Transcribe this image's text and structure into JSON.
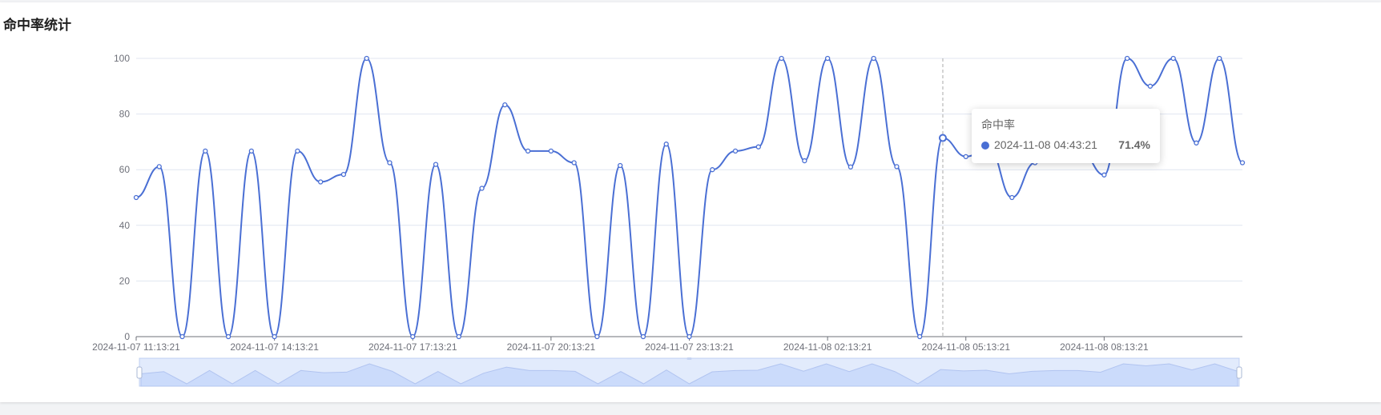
{
  "panel": {
    "title": "命中率统计"
  },
  "tooltip": {
    "series_name": "命中率",
    "x_label": "2024-11-08 04:43:21",
    "value_label": "71.4%"
  },
  "colors": {
    "line": "#4a6fd4",
    "grid": "#e0e6f1",
    "axis": "#6e7079",
    "slider_fill": "#d7e3fb",
    "slider_border": "#c6d4f2",
    "pointer": "#aaaaaa"
  },
  "chart_data": {
    "type": "line",
    "smooth": true,
    "series": [
      {
        "values": [
          50.0,
          61.1,
          0,
          66.7,
          0,
          66.7,
          0,
          66.7,
          55.6,
          58.3,
          100,
          62.5,
          0,
          61.9,
          0,
          53.3,
          83.3,
          66.7,
          66.7,
          62.5,
          0,
          61.5,
          0,
          69.2,
          0,
          60.0,
          66.7,
          68.2,
          100,
          63.2,
          100,
          61.0,
          100,
          61.1,
          0,
          71.4,
          64.7,
          68.0,
          50.0,
          62.5,
          66.7,
          66.7,
          58.1,
          100,
          90.0,
          100,
          69.6,
          100,
          62.5
        ]
      }
    ],
    "x": [
      "2024-11-07 11:13:21",
      "2024-11-07 11:43:21",
      "2024-11-07 12:13:21",
      "2024-11-07 12:43:21",
      "2024-11-07 13:13:21",
      "2024-11-07 13:43:21",
      "2024-11-07 14:13:21",
      "2024-11-07 14:43:21",
      "2024-11-07 15:13:21",
      "2024-11-07 15:43:21",
      "2024-11-07 16:13:21",
      "2024-11-07 16:43:21",
      "2024-11-07 17:13:21",
      "2024-11-07 17:43:21",
      "2024-11-07 18:13:21",
      "2024-11-07 18:43:21",
      "2024-11-07 19:13:21",
      "2024-11-07 19:43:21",
      "2024-11-07 20:13:21",
      "2024-11-07 20:43:21",
      "2024-11-07 21:13:21",
      "2024-11-07 21:43:21",
      "2024-11-07 22:13:21",
      "2024-11-07 22:43:21",
      "2024-11-07 23:13:21",
      "2024-11-07 23:43:21",
      "2024-11-08 00:13:21",
      "2024-11-08 00:43:21",
      "2024-11-08 01:13:21",
      "2024-11-08 01:43:21",
      "2024-11-08 02:13:21",
      "2024-11-08 02:43:21",
      "2024-11-08 03:13:21",
      "2024-11-08 03:43:21",
      "2024-11-08 04:13:21",
      "2024-11-08 04:43:21",
      "2024-11-08 05:13:21",
      "2024-11-08 05:43:21",
      "2024-11-08 06:13:21",
      "2024-11-08 06:43:21",
      "2024-11-08 07:13:21",
      "2024-11-08 07:43:21",
      "2024-11-08 08:13:21",
      "2024-11-08 08:43:21",
      "2024-11-08 09:13:21",
      "2024-11-08 09:43:21",
      "2024-11-08 10:13:21",
      "2024-11-08 10:43:21",
      "2024-11-08 11:13:21"
    ],
    "x_tick_labels": [
      "2024-11-07 11:13:21",
      "2024-11-07 14:13:21",
      "2024-11-07 17:13:21",
      "2024-11-07 20:13:21",
      "2024-11-07 23:13:21",
      "2024-11-08 02:13:21",
      "2024-11-08 05:13:21",
      "2024-11-08 08:13:21"
    ],
    "y_ticks": [
      0,
      20,
      40,
      60,
      80,
      100
    ],
    "ylim": [
      0,
      100
    ],
    "grid": true,
    "title": "",
    "xlabel": "",
    "ylabel": "",
    "highlighted_point": "2024-11-08 04:43:21",
    "zoom_range": [
      0,
      100
    ]
  }
}
